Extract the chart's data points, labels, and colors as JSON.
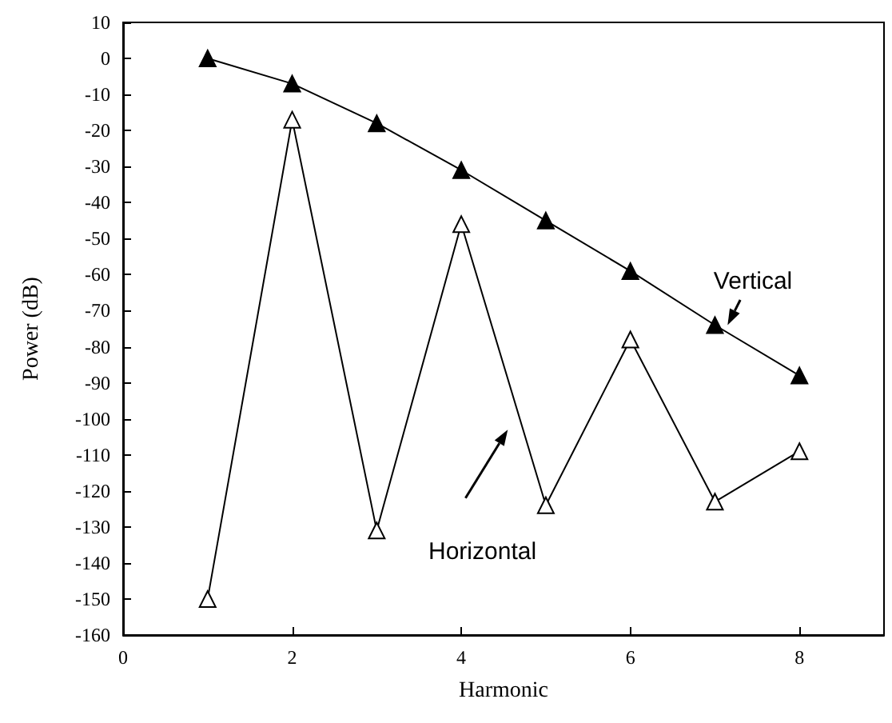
{
  "chart_data": {
    "type": "line",
    "xlabel": "Harmonic",
    "ylabel": "Power (dB)",
    "x": [
      1,
      2,
      3,
      4,
      5,
      6,
      7,
      8
    ],
    "series": [
      {
        "name": "Vertical",
        "color": "#000000",
        "values": [
          0,
          -7,
          -18,
          -31,
          -45,
          -59,
          -74,
          -88
        ]
      },
      {
        "name": "Horizontal",
        "color": "#000000",
        "values": [
          -150,
          -17,
          -131,
          -46,
          -124,
          -78,
          -123,
          -109
        ]
      }
    ],
    "xlim": [
      0,
      9
    ],
    "xticks": [
      0,
      2,
      4,
      6,
      8
    ],
    "ylim": [
      -160,
      10
    ],
    "yticks": [
      -160,
      -150,
      -140,
      -130,
      -120,
      -110,
      -100,
      -90,
      -80,
      -70,
      -60,
      -50,
      -40,
      -30,
      -20,
      -10,
      0,
      10
    ],
    "grid": false,
    "legend": false,
    "marker": "triangle",
    "line_style": "solid"
  }
}
